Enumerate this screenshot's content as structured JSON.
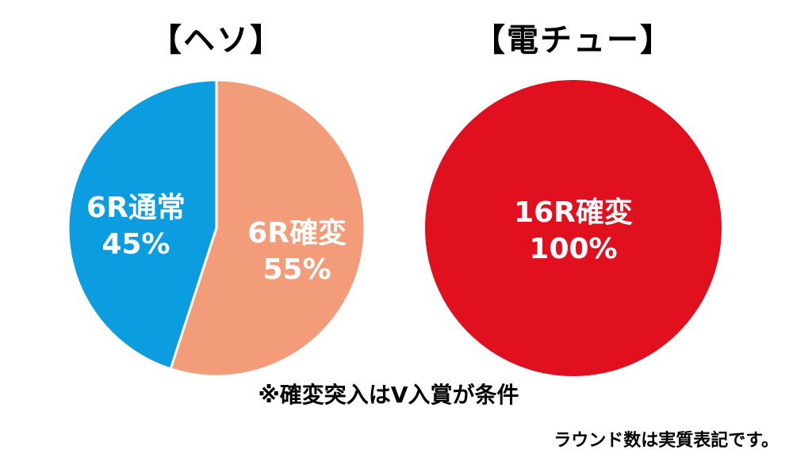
{
  "chart_data": [
    {
      "type": "pie",
      "title": "【ヘソ】",
      "slices": [
        {
          "label": "6R通常",
          "value": 45,
          "value_label": "45%",
          "color": "#0b9de0"
        },
        {
          "label": "6R確変",
          "value": 55,
          "value_label": "55%",
          "color": "#f29c7a"
        }
      ]
    },
    {
      "type": "pie",
      "title": "【電チュー】",
      "slices": [
        {
          "label": "16R確変",
          "value": 100,
          "value_label": "100%",
          "color": "#e0101e"
        }
      ]
    }
  ],
  "note": "※確変突入はV入賞が条件",
  "footnote": "ラウンド数は実質表記です。"
}
